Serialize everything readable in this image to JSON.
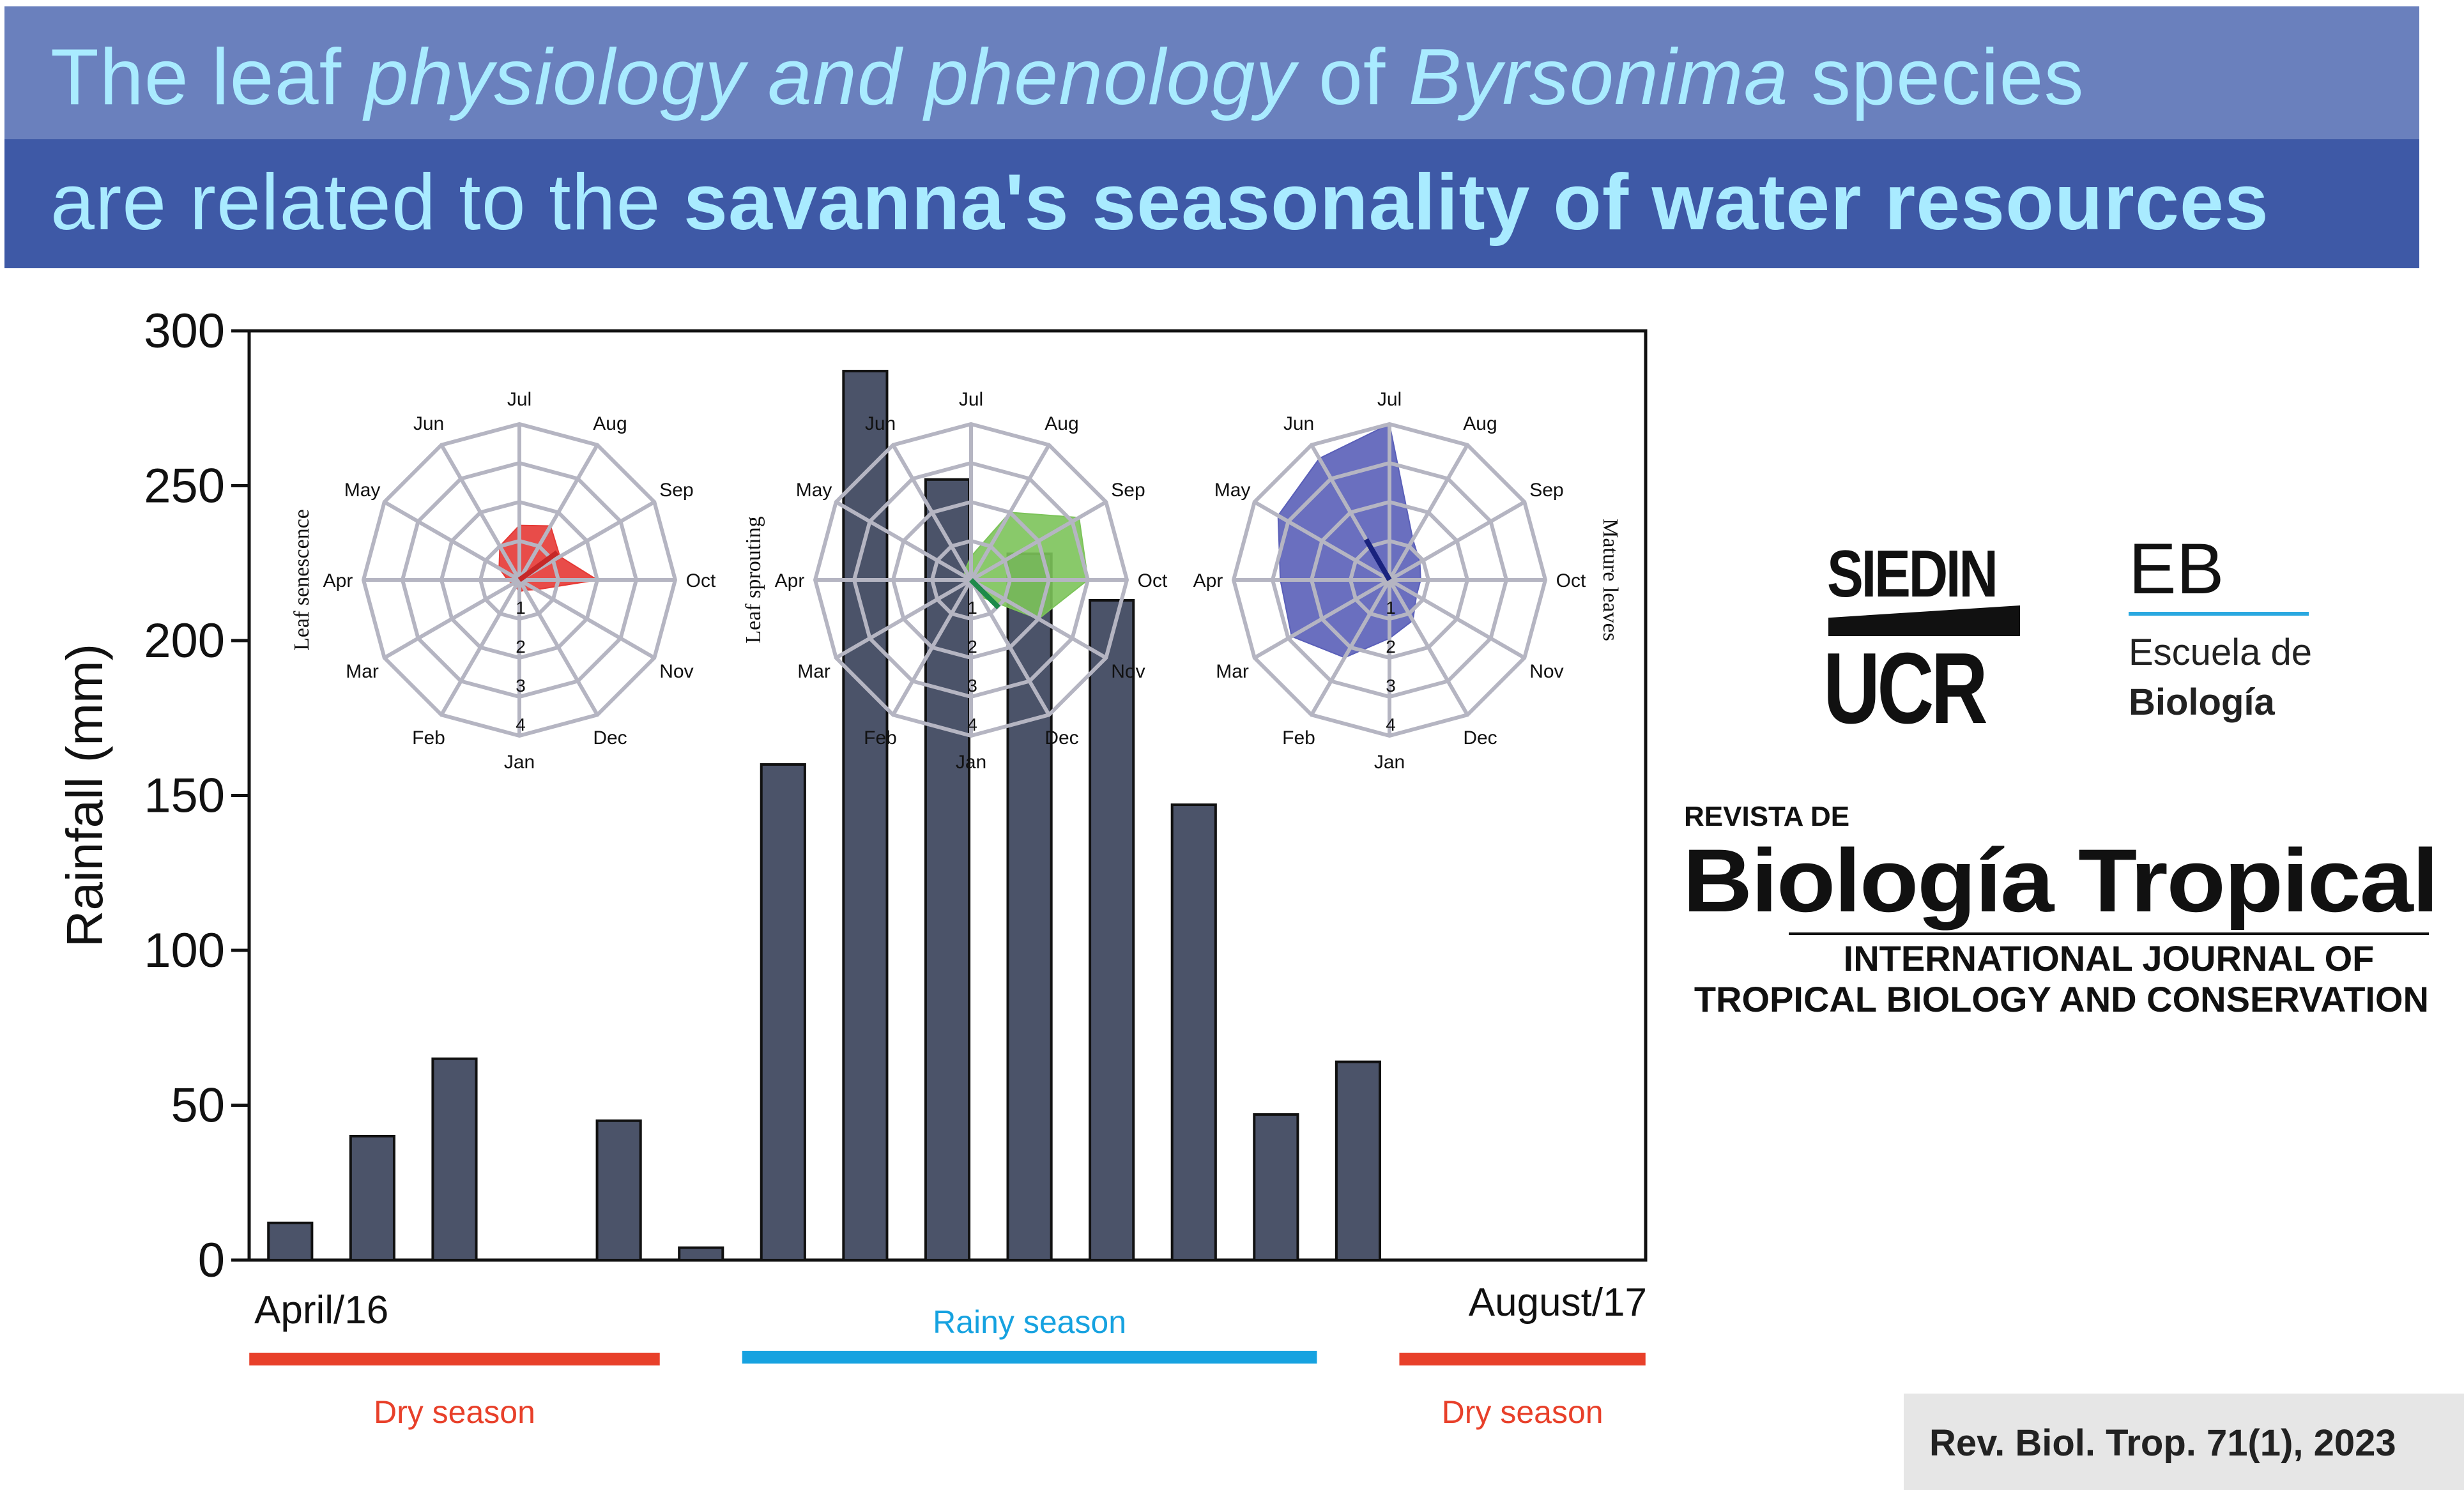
{
  "banner": {
    "line1_parts": [
      "The leaf ",
      "physiology and phenology",
      " of ",
      "Byrsonima",
      " species"
    ],
    "line2_parts": [
      "are related to the ",
      "savanna's seasonality of water resources"
    ],
    "colors": {
      "top_band": "#6a80bd",
      "bottom_band": "#3e59a6",
      "text": "#a9ebff"
    }
  },
  "chart_data": {
    "type": "bar",
    "ylabel": "Rainfall (mm)",
    "ylim": [
      0,
      300
    ],
    "yticks": [
      0,
      50,
      100,
      150,
      200,
      250,
      300
    ],
    "x_start_label": "April/16",
    "x_end_label": "August/17",
    "values": [
      12,
      40,
      65,
      0,
      45,
      4,
      160,
      287,
      252,
      228,
      213,
      147,
      47,
      64,
      0,
      0,
      0
    ],
    "bar_color": "#4b5369",
    "seasons": [
      {
        "label": "Dry season",
        "color": "#e8402a",
        "from_index": 0,
        "to_index": 4,
        "label_pos": "below"
      },
      {
        "label": "Rainy season",
        "color": "#16a2e0",
        "from_index": 6,
        "to_index": 12,
        "label_pos": "above"
      },
      {
        "label": "Dry season",
        "color": "#e8402a",
        "from_index": 14,
        "to_index": 16,
        "label_pos": "below"
      }
    ],
    "radar_months": [
      "Jan",
      "Feb",
      "Mar",
      "Apr",
      "May",
      "Jun",
      "Jul",
      "Aug",
      "Sep",
      "Oct",
      "Nov",
      "Dec"
    ],
    "radar_rings": [
      "1",
      "2",
      "3",
      "4"
    ],
    "radar_max": 4,
    "radars": [
      {
        "side_label": "Leaf senescence",
        "label_side": "left",
        "color": "#e53935",
        "arrow_month": 7.8,
        "arrow_length": 1.2,
        "values": [
          0.3,
          0.2,
          0.2,
          0.3,
          0.6,
          1.0,
          1.4,
          1.6,
          1.2,
          2.0,
          0.5,
          0.3
        ]
      },
      {
        "side_label": "Leaf sprouting",
        "label_side": "left",
        "color": "#7cc35a",
        "arrow_month": 10.5,
        "arrow_length": 1.0,
        "values": [
          0.1,
          0.1,
          0.1,
          0.1,
          0.2,
          0.3,
          0.6,
          2.0,
          3.2,
          3.0,
          2.0,
          0.5
        ]
      },
      {
        "side_label": "Mature leaves",
        "label_side": "right",
        "color": "#5a5fb8",
        "arrow_month": 5.0,
        "arrow_length": 1.2,
        "values": [
          1.5,
          2.3,
          2.9,
          2.8,
          3.3,
          3.6,
          4.0,
          1.2,
          0.9,
          0.8,
          0.8,
          1.2
        ]
      }
    ]
  },
  "logos": {
    "siedin": "SIEDIN",
    "ucr": "UCR",
    "eb": "EB",
    "escuela": "Escuela de",
    "biologia": "Biología",
    "revista": "REVISTA DE",
    "biotrop": "Biología Tropical",
    "journal1": "INTERNATIONAL JOURNAL OF",
    "journal2": "TROPICAL BIOLOGY AND CONSERVATION"
  },
  "citation": "Rev. Biol. Trop. 71(1), 2023"
}
